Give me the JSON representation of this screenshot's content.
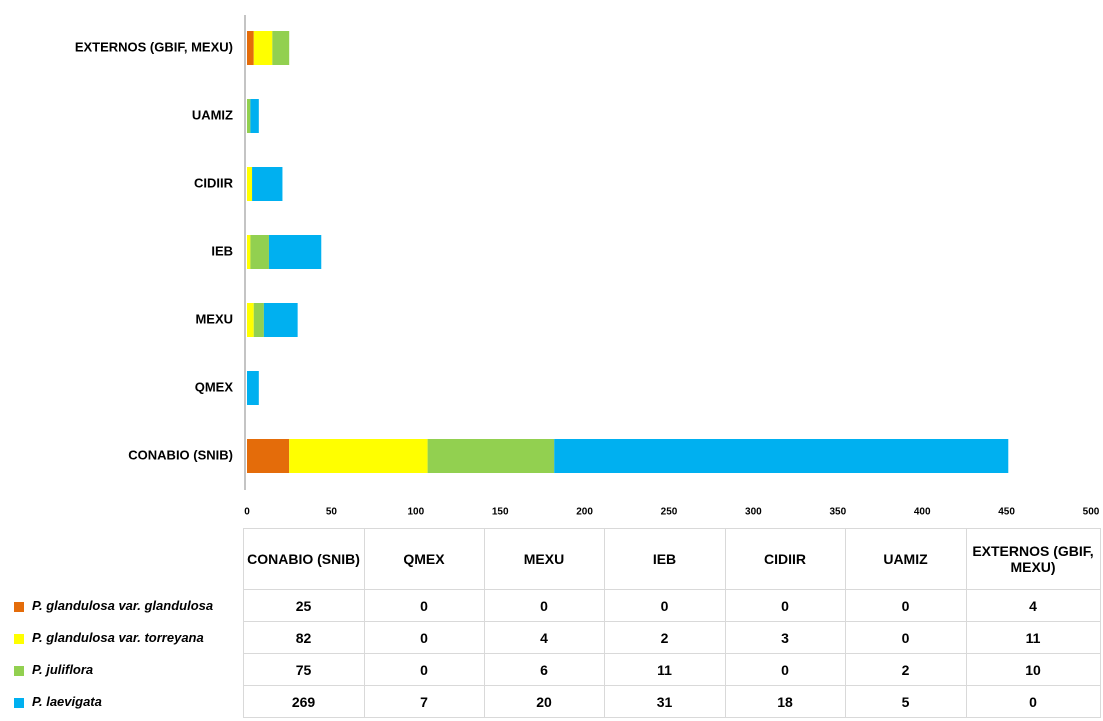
{
  "chart_data": {
    "type": "bar",
    "orientation": "horizontal",
    "stacked": true,
    "categories": [
      "CONABIO (SNIB)",
      "QMEX",
      "MEXU",
      "IEB",
      "CIDIIR",
      "UAMIZ",
      "EXTERNOS (GBIF, MEXU)"
    ],
    "series": [
      {
        "name": "P. glandulosa var. glandulosa",
        "color": "#E46C0A",
        "values": [
          25,
          0,
          0,
          0,
          0,
          0,
          4
        ]
      },
      {
        "name": "P. glandulosa var. torreyana",
        "color": "#FFFF00",
        "values": [
          82,
          0,
          4,
          2,
          3,
          0,
          11
        ]
      },
      {
        "name": "P. juliflora",
        "color": "#92D050",
        "values": [
          75,
          0,
          6,
          11,
          0,
          2,
          10
        ]
      },
      {
        "name": "P. laevigata",
        "color": "#00B0F0",
        "values": [
          269,
          7,
          20,
          31,
          18,
          5,
          0
        ]
      }
    ],
    "xlim": [
      0,
      500
    ],
    "xticks": [
      0,
      50,
      100,
      150,
      200,
      250,
      300,
      350,
      400,
      450,
      500
    ]
  }
}
